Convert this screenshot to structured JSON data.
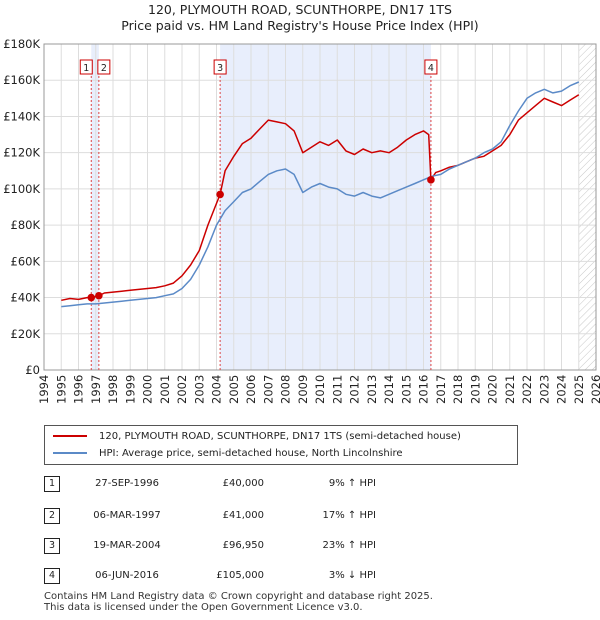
{
  "title_line1": "120, PLYMOUTH ROAD, SCUNTHORPE, DN17 1TS",
  "title_line2": "Price paid vs. HM Land Registry's House Price Index (HPI)",
  "chart_data": {
    "type": "line",
    "title": "120, PLYMOUTH ROAD, SCUNTHORPE, DN17 1TS — Price paid vs. HM Land Registry's House Price Index (HPI)",
    "xlabel": "",
    "ylabel": "",
    "xlim": [
      1994,
      2026
    ],
    "ylim": [
      0,
      180000
    ],
    "x_ticks": [
      "1994",
      "1995",
      "1996",
      "1997",
      "1998",
      "1999",
      "2000",
      "2001",
      "2002",
      "2003",
      "2004",
      "2005",
      "2006",
      "2007",
      "2008",
      "2009",
      "2010",
      "2011",
      "2012",
      "2013",
      "2014",
      "2015",
      "2016",
      "2017",
      "2018",
      "2019",
      "2020",
      "2021",
      "2022",
      "2023",
      "2024",
      "2025",
      "2026"
    ],
    "y_ticks": [
      0,
      20000,
      40000,
      60000,
      80000,
      100000,
      120000,
      140000,
      160000,
      180000
    ],
    "y_tick_labels": [
      "£0",
      "£20K",
      "£40K",
      "£60K",
      "£80K",
      "£100K",
      "£120K",
      "£140K",
      "£160K",
      "£180K"
    ],
    "ownership_shading": [
      [
        1996.74,
        1997.18
      ],
      [
        2004.21,
        2016.43
      ]
    ],
    "series": [
      {
        "name": "120, PLYMOUTH ROAD, SCUNTHORPE, DN17 1TS (semi-detached house)",
        "color": "#cc0000",
        "x": [
          1995.0,
          1995.5,
          1996.0,
          1996.5,
          1996.74,
          1997.0,
          1997.18,
          1997.5,
          1998.0,
          1998.5,
          1999.0,
          1999.5,
          2000.0,
          2000.5,
          2001.0,
          2001.5,
          2002.0,
          2002.5,
          2003.0,
          2003.5,
          2004.0,
          2004.21,
          2004.5,
          2005.0,
          2005.5,
          2006.0,
          2006.5,
          2007.0,
          2007.5,
          2008.0,
          2008.5,
          2009.0,
          2009.5,
          2010.0,
          2010.5,
          2011.0,
          2011.5,
          2012.0,
          2012.5,
          2013.0,
          2013.5,
          2014.0,
          2014.5,
          2015.0,
          2015.5,
          2016.0,
          2016.3,
          2016.43,
          2016.7,
          2017.0,
          2017.5,
          2018.0,
          2018.5,
          2019.0,
          2019.5,
          2020.0,
          2020.5,
          2021.0,
          2021.5,
          2022.0,
          2022.5,
          2023.0,
          2023.5,
          2024.0,
          2024.5,
          2025.0
        ],
        "y": [
          38500,
          39500,
          39000,
          40000,
          40000,
          40500,
          41000,
          42500,
          43000,
          43500,
          44000,
          44500,
          45000,
          45500,
          46500,
          48000,
          52000,
          58000,
          66000,
          80000,
          92000,
          96950,
          110000,
          118000,
          125000,
          128000,
          133000,
          138000,
          137000,
          136000,
          132000,
          120000,
          123000,
          126000,
          124000,
          127000,
          121000,
          119000,
          122000,
          120000,
          121000,
          120000,
          123000,
          127000,
          130000,
          132000,
          130000,
          105000,
          109000,
          110000,
          112000,
          113000,
          115000,
          117000,
          118000,
          121000,
          124000,
          130000,
          138000,
          142000,
          146000,
          150000,
          148000,
          146000,
          149000,
          152000
        ]
      },
      {
        "name": "HPI: Average price, semi-detached house, North Lincolnshire",
        "color": "#5b8ac7",
        "x": [
          1995.0,
          1995.5,
          1996.0,
          1996.5,
          1997.0,
          1997.5,
          1998.0,
          1998.5,
          1999.0,
          1999.5,
          2000.0,
          2000.5,
          2001.0,
          2001.5,
          2002.0,
          2002.5,
          2003.0,
          2003.5,
          2004.0,
          2004.5,
          2005.0,
          2005.5,
          2006.0,
          2006.5,
          2007.0,
          2007.5,
          2008.0,
          2008.5,
          2009.0,
          2009.5,
          2010.0,
          2010.5,
          2011.0,
          2011.5,
          2012.0,
          2012.5,
          2013.0,
          2013.5,
          2014.0,
          2014.5,
          2015.0,
          2015.5,
          2016.0,
          2016.5,
          2017.0,
          2017.5,
          2018.0,
          2018.5,
          2019.0,
          2019.5,
          2020.0,
          2020.5,
          2021.0,
          2021.5,
          2022.0,
          2022.5,
          2023.0,
          2023.5,
          2024.0,
          2024.5,
          2025.0
        ],
        "y": [
          35000,
          35500,
          36000,
          36500,
          36500,
          37000,
          37500,
          38000,
          38500,
          39000,
          39500,
          40000,
          41000,
          42000,
          45000,
          50000,
          58000,
          68000,
          80000,
          88000,
          93000,
          98000,
          100000,
          104000,
          108000,
          110000,
          111000,
          108000,
          98000,
          101000,
          103000,
          101000,
          100000,
          97000,
          96000,
          98000,
          96000,
          95000,
          97000,
          99000,
          101000,
          103000,
          105000,
          107000,
          108000,
          111000,
          113000,
          115000,
          117000,
          120000,
          122000,
          126000,
          135000,
          143000,
          150000,
          153000,
          155000,
          153000,
          154000,
          157000,
          159000
        ]
      }
    ],
    "sale_markers": [
      {
        "label": "1",
        "x": 1996.74,
        "y": 40000
      },
      {
        "label": "2",
        "x": 1997.18,
        "y": 41000
      },
      {
        "label": "3",
        "x": 2004.21,
        "y": 96950
      },
      {
        "label": "4",
        "x": 2016.43,
        "y": 105000
      }
    ]
  },
  "legend": [
    {
      "label": "120, PLYMOUTH ROAD, SCUNTHORPE, DN17 1TS (semi-detached house)",
      "color": "#cc0000"
    },
    {
      "label": "HPI: Average price, semi-detached house, North Lincolnshire",
      "color": "#5b8ac7"
    }
  ],
  "sales": [
    {
      "num": "1",
      "date": "27-SEP-1996",
      "price": "£40,000",
      "hpi": "9% ↑ HPI"
    },
    {
      "num": "2",
      "date": "06-MAR-1997",
      "price": "£41,000",
      "hpi": "17% ↑ HPI"
    },
    {
      "num": "3",
      "date": "19-MAR-2004",
      "price": "£96,950",
      "hpi": "23% ↑ HPI"
    },
    {
      "num": "4",
      "date": "06-JUN-2016",
      "price": "£105,000",
      "hpi": "3% ↓ HPI"
    }
  ],
  "footer_line1": "Contains HM Land Registry data © Crown copyright and database right 2025.",
  "footer_line2": "This data is licensed under the Open Government Licence v3.0."
}
